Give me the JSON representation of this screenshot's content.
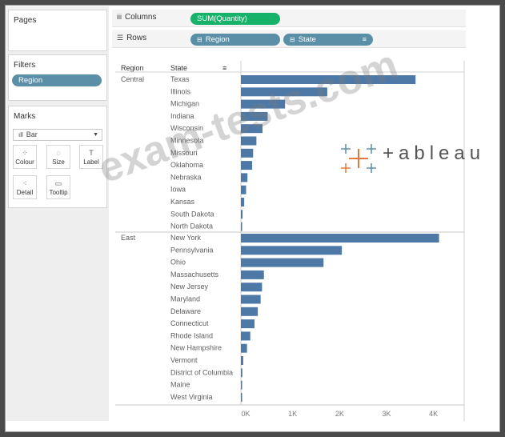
{
  "shelves": {
    "pages_label": "Pages",
    "columns_label": "Columns",
    "columns_pill": "SUM(Quantity)",
    "rows_label": "Rows",
    "rows_pills": [
      "Region",
      "State"
    ]
  },
  "filters": {
    "label": "Filters",
    "pills": [
      "Region"
    ]
  },
  "marks": {
    "label": "Marks",
    "mark_type": "Bar",
    "buttons": [
      "Colour",
      "Size",
      "Label",
      "Detail",
      "Tooltip"
    ]
  },
  "table_headers": {
    "region": "Region",
    "state": "State"
  },
  "watermark": {
    "text": "exam-tests.com",
    "logo_text": "+ableau"
  },
  "colors": {
    "bar": "#4e79a7",
    "pill_green": "#17b26a",
    "pill_teal": "#5b8fa8"
  },
  "chart_data": {
    "type": "bar",
    "orientation": "horizontal",
    "measure": "SUM(Quantity)",
    "xlim": [
      0,
      4500
    ],
    "x_ticks": [
      "0K",
      "1K",
      "2K",
      "3K",
      "4K"
    ],
    "x_tick_values": [
      0,
      1000,
      2000,
      3000,
      4000
    ],
    "groups": [
      {
        "region": "Central",
        "states": [
          "Texas",
          "Illinois",
          "Michigan",
          "Indiana",
          "Wisconsin",
          "Minnesota",
          "Missouri",
          "Oklahoma",
          "Nebraska",
          "Iowa",
          "Kansas",
          "South Dakota",
          "North Dakota"
        ],
        "values": [
          3720,
          1840,
          940,
          570,
          460,
          330,
          260,
          240,
          140,
          110,
          70,
          35,
          20
        ]
      },
      {
        "region": "East",
        "states": [
          "New York",
          "Pennsylvania",
          "Ohio",
          "Massachusetts",
          "New Jersey",
          "Maryland",
          "Delaware",
          "Connecticut",
          "Rhode Island",
          "New Hampshire",
          "Vermont",
          "District of Columbia",
          "Maine",
          "West Virginia"
        ],
        "values": [
          4220,
          2150,
          1760,
          490,
          450,
          420,
          360,
          290,
          200,
          130,
          50,
          30,
          20,
          10
        ]
      }
    ]
  }
}
